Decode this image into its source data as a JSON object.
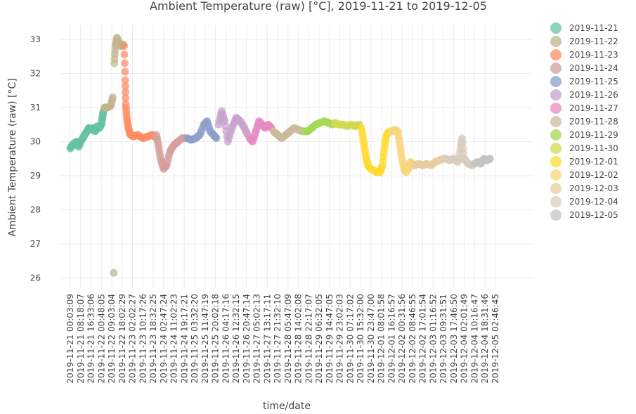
{
  "chart_data": {
    "type": "scatter",
    "title": "Ambient Temperature (raw) [°C], 2019-11-21 to 2019-12-05",
    "xlabel": "time/date",
    "ylabel": "Ambient Temperature (raw) [°C]",
    "ylim": [
      25.7,
      33.7
    ],
    "yticks": [
      26,
      27,
      28,
      29,
      30,
      31,
      32,
      33
    ],
    "grid": true,
    "legend_placement": "right",
    "x_tick_labels": [
      "2019-11-21 00:03:09",
      "2019-11-21 08:18:07",
      "2019-11-21 16:33:06",
      "2019-11-22 00:48:05",
      "2019-11-22 09:03:04",
      "2019-11-22 18:02:29",
      "2019-11-23 02:02:27",
      "2019-11-23 10:17:26",
      "2019-11-23 18:32:25",
      "2019-11-24 02:47:24",
      "2019-11-24 11:02:23",
      "2019-11-24 19:17:21",
      "2019-11-25 03:32:20",
      "2019-11-25 11:47:19",
      "2019-11-25 20:02:18",
      "2019-11-26 04:17:16",
      "2019-11-26 12:32:15",
      "2019-11-26 20:47:14",
      "2019-11-27 05:02:13",
      "2019-11-27 13:17:11",
      "2019-11-27 21:32:10",
      "2019-11-28 05:47:09",
      "2019-11-28 14:02:08",
      "2019-11-28 22:17:07",
      "2019-11-29 06:32:05",
      "2019-11-29 14:47:05",
      "2019-11-29 23:02:03",
      "2019-11-30 07:17:02",
      "2019-11-30 15:32:00",
      "2019-11-30 23:47:00",
      "2019-12-01 08:01:58",
      "2019-12-01 16:16:57",
      "2019-12-02 00:31:56",
      "2019-12-02 08:46:55",
      "2019-12-02 17:01:54",
      "2019-12-03 01:16:52",
      "2019-12-03 09:31:51",
      "2019-12-03 17:46:50",
      "2019-12-04 02:01:49",
      "2019-12-04 10:16:47",
      "2019-12-04 18:31:46",
      "2019-12-05 02:46:45"
    ],
    "series": [
      {
        "name": "2019-11-21",
        "color": "#66c2a5",
        "points": [
          [
            0,
            29.8
          ],
          [
            0.2,
            29.9
          ],
          [
            0.4,
            29.95
          ],
          [
            0.6,
            30.0
          ],
          [
            0.8,
            29.85
          ],
          [
            1,
            30.0
          ],
          [
            1.2,
            30.1
          ],
          [
            1.4,
            30.2
          ],
          [
            1.6,
            30.3
          ],
          [
            1.8,
            30.4
          ],
          [
            2,
            30.35
          ],
          [
            2.2,
            30.4
          ],
          [
            2.4,
            30.3
          ],
          [
            2.6,
            30.45
          ],
          [
            2.8,
            30.4
          ],
          [
            3,
            30.5
          ],
          [
            3.1,
            30.7
          ],
          [
            3.2,
            30.9
          ]
        ]
      },
      {
        "name": "2019-11-22",
        "color": "#c2b48f",
        "points": [
          [
            3.3,
            31.0
          ],
          [
            3.6,
            31.0
          ],
          [
            3.9,
            31.05
          ],
          [
            4.1,
            31.3
          ],
          [
            4.2,
            26.15
          ],
          [
            4.25,
            32.3
          ],
          [
            4.35,
            32.8
          ],
          [
            4.5,
            33.05
          ],
          [
            4.7,
            32.9
          ],
          [
            4.9,
            32.8
          ],
          [
            5.1,
            32.85
          ]
        ]
      },
      {
        "name": "2019-11-23",
        "color": "#fc8d62",
        "points": [
          [
            5.2,
            32.8
          ],
          [
            5.3,
            31.8
          ],
          [
            5.35,
            31.1
          ],
          [
            5.45,
            30.7
          ],
          [
            5.6,
            30.4
          ],
          [
            5.8,
            30.2
          ],
          [
            6.1,
            30.15
          ],
          [
            6.5,
            30.2
          ],
          [
            7,
            30.1
          ],
          [
            7.5,
            30.15
          ],
          [
            7.9,
            30.2
          ],
          [
            8.1,
            30.15
          ]
        ]
      },
      {
        "name": "2019-11-24",
        "color": "#d29f9c",
        "points": [
          [
            8.3,
            30.2
          ],
          [
            8.5,
            29.9
          ],
          [
            8.7,
            29.5
          ],
          [
            9,
            29.2
          ],
          [
            9.3,
            29.3
          ],
          [
            9.6,
            29.7
          ],
          [
            10,
            29.9
          ],
          [
            10.4,
            30.0
          ],
          [
            10.8,
            30.1
          ],
          [
            11.1,
            30.1
          ]
        ]
      },
      {
        "name": "2019-11-25",
        "color": "#8da0cb",
        "points": [
          [
            11.3,
            30.1
          ],
          [
            11.7,
            30.05
          ],
          [
            12.1,
            30.1
          ],
          [
            12.5,
            30.2
          ],
          [
            12.9,
            30.5
          ],
          [
            13.2,
            30.6
          ],
          [
            13.5,
            30.3
          ],
          [
            13.8,
            30.2
          ],
          [
            14.1,
            30.1
          ]
        ]
      },
      {
        "name": "2019-11-26",
        "color": "#c7a2cf",
        "points": [
          [
            14.3,
            30.5
          ],
          [
            14.6,
            30.9
          ],
          [
            14.9,
            30.6
          ],
          [
            15.2,
            30.0
          ],
          [
            15.6,
            30.4
          ],
          [
            16,
            30.7
          ],
          [
            16.4,
            30.6
          ],
          [
            16.8,
            30.4
          ],
          [
            17.1,
            30.2
          ]
        ]
      },
      {
        "name": "2019-11-27",
        "color": "#e78ac3",
        "points": [
          [
            17.3,
            30.1
          ],
          [
            17.6,
            30.0
          ],
          [
            17.9,
            30.3
          ],
          [
            18.2,
            30.6
          ],
          [
            18.5,
            30.5
          ],
          [
            18.8,
            30.4
          ],
          [
            19.1,
            30.5
          ],
          [
            19.4,
            30.4
          ]
        ]
      },
      {
        "name": "2019-11-28",
        "color": "#ccbb9a",
        "points": [
          [
            19.6,
            30.3
          ],
          [
            20,
            30.2
          ],
          [
            20.4,
            30.1
          ],
          [
            20.8,
            30.2
          ],
          [
            21.2,
            30.3
          ],
          [
            21.6,
            30.4
          ],
          [
            22,
            30.35
          ],
          [
            22.4,
            30.3
          ]
        ]
      },
      {
        "name": "2019-11-29",
        "color": "#a6d854",
        "points": [
          [
            22.6,
            30.3
          ],
          [
            22.9,
            30.3
          ],
          [
            23.3,
            30.4
          ],
          [
            23.7,
            30.5
          ],
          [
            24.1,
            30.55
          ],
          [
            24.5,
            30.6
          ],
          [
            24.9,
            30.55
          ],
          [
            25.3,
            30.5
          ]
        ]
      },
      {
        "name": "2019-11-30",
        "color": "#d3d84f",
        "points": [
          [
            25.5,
            30.55
          ],
          [
            25.9,
            30.5
          ],
          [
            26.3,
            30.5
          ],
          [
            26.7,
            30.45
          ],
          [
            27.1,
            30.5
          ],
          [
            27.5,
            30.45
          ],
          [
            27.9,
            30.5
          ]
        ]
      },
      {
        "name": "2019-12-01",
        "color": "#ffd92f",
        "points": [
          [
            28.1,
            30.4
          ],
          [
            28.3,
            30.0
          ],
          [
            28.5,
            29.6
          ],
          [
            28.7,
            29.3
          ],
          [
            29,
            29.2
          ],
          [
            29.3,
            29.15
          ],
          [
            29.6,
            29.1
          ],
          [
            29.9,
            29.1
          ],
          [
            30.1,
            29.3
          ],
          [
            30.3,
            29.8
          ],
          [
            30.5,
            30.2
          ],
          [
            30.8,
            30.3
          ]
        ]
      },
      {
        "name": "2019-12-02",
        "color": "#f8d57e",
        "points": [
          [
            31,
            30.3
          ],
          [
            31.3,
            30.35
          ],
          [
            31.6,
            30.3
          ],
          [
            31.8,
            29.9
          ],
          [
            32,
            29.5
          ],
          [
            32.2,
            29.2
          ],
          [
            32.4,
            29.1
          ],
          [
            32.6,
            29.2
          ],
          [
            32.8,
            29.4
          ],
          [
            33,
            29.35
          ]
        ]
      },
      {
        "name": "2019-12-03",
        "color": "#e9cda0",
        "points": [
          [
            33.2,
            29.3
          ],
          [
            33.6,
            29.35
          ],
          [
            34,
            29.3
          ],
          [
            34.4,
            29.35
          ],
          [
            34.8,
            29.3
          ],
          [
            35.2,
            29.4
          ],
          [
            35.6,
            29.45
          ],
          [
            36,
            29.5
          ]
        ]
      },
      {
        "name": "2019-12-04",
        "color": "#d8cdbb",
        "points": [
          [
            36.2,
            29.5
          ],
          [
            36.6,
            29.45
          ],
          [
            37,
            29.5
          ],
          [
            37.4,
            29.4
          ],
          [
            37.7,
            29.9
          ],
          [
            37.8,
            30.1
          ],
          [
            38,
            29.5
          ],
          [
            38.4,
            29.35
          ],
          [
            38.8,
            29.3
          ]
        ]
      },
      {
        "name": "2019-12-05",
        "color": "#c4c4c4",
        "points": [
          [
            39,
            29.35
          ],
          [
            39.3,
            29.4
          ],
          [
            39.6,
            29.35
          ],
          [
            39.9,
            29.5
          ],
          [
            40.2,
            29.45
          ],
          [
            40.5,
            29.5
          ]
        ]
      }
    ]
  }
}
